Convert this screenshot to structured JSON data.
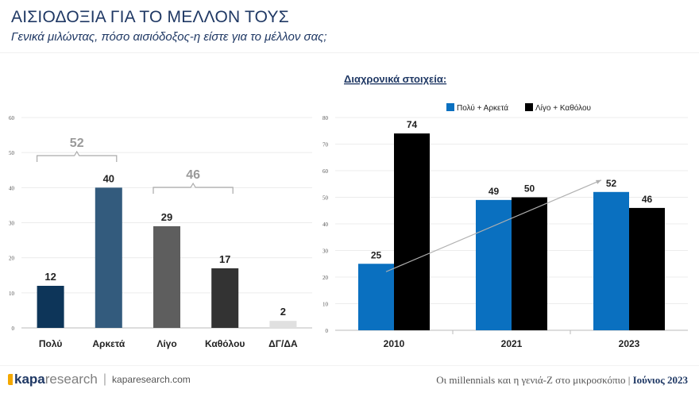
{
  "header": {
    "title": "ΑΙΣΙΟΔΟΞΙΑ ΓΙΑ ΤΟ ΜΕΛΛΟΝ ΤΟΥΣ",
    "subtitle": "Γενικά μιλώντας, πόσο αισιόδοξος-η είστε για το μέλλον σας;"
  },
  "chart_data": [
    {
      "type": "bar",
      "categories": [
        "Πολύ",
        "Αρκετά",
        "Λίγο",
        "Καθόλου",
        "ΔΓ/ΔΑ"
      ],
      "values": [
        12,
        40,
        29,
        17,
        2
      ],
      "colors": [
        "#0d3559",
        "#335b7d",
        "#5e5e5e",
        "#333333",
        "#e0e0e0"
      ],
      "ylim": [
        0,
        60
      ],
      "yticks": [
        0,
        10,
        20,
        30,
        40,
        50,
        60
      ],
      "grid": true,
      "annotations": [
        {
          "label": "52",
          "span": [
            "Πολύ",
            "Αρκετά"
          ]
        },
        {
          "label": "46",
          "span": [
            "Λίγο",
            "Καθόλου"
          ]
        }
      ]
    },
    {
      "type": "bar",
      "title": "Διαχρονικά στοιχεία:",
      "categories": [
        "2010",
        "2021",
        "2023"
      ],
      "series": [
        {
          "name": "Πολύ + Αρκετά",
          "values": [
            25,
            49,
            52
          ],
          "color": "#0a70c0"
        },
        {
          "name": "Λίγο + Καθόλου",
          "values": [
            74,
            50,
            46
          ],
          "color": "#000000"
        }
      ],
      "ylim": [
        0,
        80
      ],
      "yticks": [
        0,
        10,
        20,
        30,
        40,
        50,
        60,
        70,
        80
      ],
      "grid": true,
      "legend": "top",
      "trend_arrow": {
        "series": "Πολύ + Αρκετά",
        "from": "2010",
        "to": "2023"
      }
    }
  ],
  "footer": {
    "logo_bold": "kapa",
    "logo_light": "research",
    "separator": "|",
    "url": "kaparesearch.com",
    "report": "Οι millennials και η γενιά-Ζ στο μικροσκόπιο | ",
    "date": "Ιούνιος 2023"
  }
}
